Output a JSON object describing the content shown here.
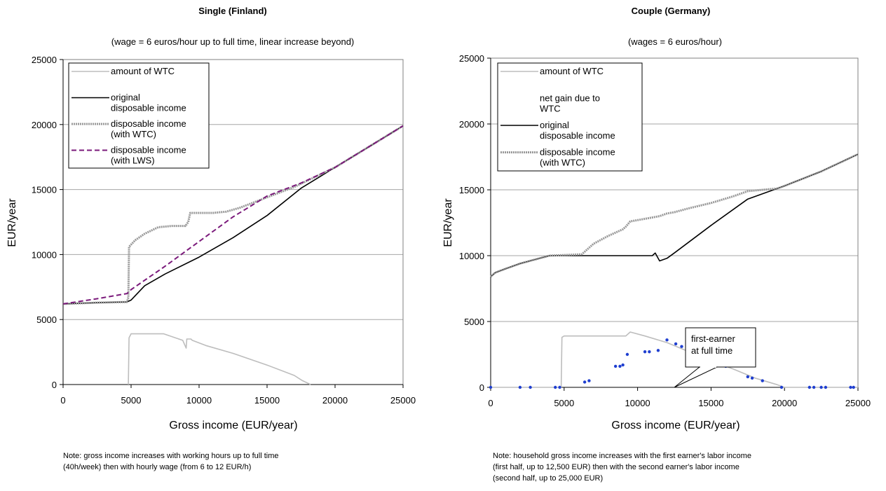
{
  "chart_data": [
    {
      "type": "line",
      "title": "Single (Finland)",
      "subtitle": "(wage = 6 euros/hour up to full time, linear increase beyond)",
      "xlabel": "Gross income (EUR/year)",
      "ylabel": "EUR/year",
      "xlim": [
        0,
        25000
      ],
      "ylim": [
        0,
        25000
      ],
      "xticks": [
        0,
        5000,
        10000,
        15000,
        20000,
        25000
      ],
      "yticks": [
        0,
        5000,
        10000,
        15000,
        20000,
        25000
      ],
      "grid": true,
      "legend_position": "top-left",
      "note": [
        "Note: gross income increases with working hours up to full time",
        "(40h/week) then with hourly wage (from 6 to 12 EUR/h)"
      ],
      "series": [
        {
          "name": "amount of WTC",
          "color": "#bdbdbd",
          "style": "solid",
          "x": [
            4800,
            4850,
            5000,
            7400,
            8800,
            9050,
            9100,
            9400,
            9500,
            10500,
            12500,
            15000,
            17000,
            17600,
            18200
          ],
          "y": [
            0,
            3600,
            3900,
            3900,
            3400,
            2800,
            3500,
            3500,
            3400,
            3000,
            2400,
            1500,
            700,
            300,
            0
          ]
        },
        {
          "name": "original disposable income",
          "color": "#000000",
          "style": "solid",
          "x": [
            0,
            2500,
            4700,
            5000,
            6000,
            7500,
            10000,
            12500,
            15000,
            17500,
            20000,
            22500,
            25000
          ],
          "y": [
            6200,
            6300,
            6350,
            6500,
            7600,
            8500,
            9800,
            11300,
            13000,
            15100,
            16700,
            18300,
            19900
          ]
        },
        {
          "name": "disposable income (with WTC)",
          "color": "#999999",
          "style": "dotted",
          "x": [
            0,
            2500,
            4700,
            4800,
            4850,
            5300,
            6000,
            7000,
            8000,
            9000,
            9200,
            9350,
            10000,
            11000,
            12000,
            13000,
            14000,
            15000,
            16000,
            17000,
            18000,
            20000,
            22500,
            25000
          ],
          "y": [
            6200,
            6300,
            6350,
            6700,
            10600,
            11100,
            11600,
            12100,
            12200,
            12200,
            12500,
            13200,
            13200,
            13200,
            13300,
            13600,
            14000,
            14400,
            14800,
            15200,
            15700,
            16700,
            18300,
            19900
          ]
        },
        {
          "name": "disposable income (with LWS)",
          "color": "#7b1a7b",
          "style": "dashed",
          "x": [
            0,
            2500,
            4700,
            5000,
            7500,
            10000,
            12500,
            15000,
            17500,
            20000,
            22500,
            25000
          ],
          "y": [
            6200,
            6600,
            7000,
            7300,
            9100,
            11000,
            12900,
            14500,
            15500,
            16700,
            18300,
            19900
          ]
        }
      ]
    },
    {
      "type": "line",
      "title": "Couple (Germany)",
      "subtitle": "(wages = 6 euros/hour)",
      "xlabel": "Gross income (EUR/year)",
      "ylabel": "EUR/year",
      "xlim": [
        0,
        25000
      ],
      "ylim": [
        0,
        25000
      ],
      "xticks": [
        0,
        5000,
        10000,
        15000,
        20000,
        25000
      ],
      "yticks": [
        0,
        5000,
        10000,
        15000,
        20000,
        25000
      ],
      "grid": true,
      "legend_position": "top-left",
      "annotation": {
        "text": [
          "first-earner",
          "at full time"
        ],
        "x": 12500,
        "y": 0
      },
      "note": [
        "Note: household gross income increases with the first earner's labor income",
        "(first half, up to 12,500 EUR) then with the second earner's labor income",
        "(second half, up to 25,000 EUR)"
      ],
      "series": [
        {
          "name": "amount of WTC",
          "color": "#bdbdbd",
          "style": "solid",
          "x": [
            0,
            4800,
            4850,
            5000,
            9200,
            9500,
            10500,
            12000,
            13500,
            15000,
            16500,
            18000,
            19500,
            20000,
            25000
          ],
          "y": [
            0,
            0,
            3800,
            3900,
            3900,
            4200,
            3900,
            3400,
            2700,
            2000,
            1400,
            700,
            200,
            0,
            0
          ]
        },
        {
          "name": "net gain due to WTC",
          "color": "#1f3fd0",
          "style": "markers",
          "x": [
            0,
            2000,
            2700,
            4400,
            4700,
            6400,
            6700,
            8500,
            8800,
            9000,
            9300,
            10500,
            10800,
            11400,
            12000,
            12600,
            13000,
            14000,
            15000,
            16000,
            17500,
            17800,
            18500,
            19800,
            21700,
            22000,
            22500,
            22800,
            24500,
            24700
          ],
          "y": [
            0,
            0,
            0,
            0,
            0,
            400,
            500,
            1600,
            1600,
            1700,
            2500,
            2700,
            2700,
            2800,
            3600,
            3300,
            3100,
            2700,
            1800,
            1600,
            800,
            700,
            500,
            0,
            0,
            0,
            0,
            0,
            0,
            0
          ]
        },
        {
          "name": "original disposable income",
          "color": "#000000",
          "style": "solid",
          "x": [
            0,
            300,
            1000,
            2000,
            3000,
            4000,
            6000,
            8000,
            10000,
            11000,
            11200,
            11500,
            12000,
            12500,
            15000,
            17500,
            20000,
            22500,
            25000
          ],
          "y": [
            8400,
            8700,
            9000,
            9400,
            9700,
            10000,
            10000,
            10000,
            10000,
            10000,
            10200,
            9600,
            9800,
            10200,
            12300,
            14300,
            15300,
            16400,
            17700
          ]
        },
        {
          "name": "disposable income (with WTC)",
          "color": "#999999",
          "style": "dotted",
          "x": [
            0,
            300,
            1000,
            2000,
            3000,
            4000,
            6200,
            7000,
            8000,
            9000,
            9200,
            9500,
            10500,
            11500,
            12000,
            12500,
            13500,
            15000,
            16500,
            17500,
            18500,
            19500,
            20000,
            22500,
            25000
          ],
          "y": [
            8400,
            8700,
            9000,
            9400,
            9700,
            10000,
            10100,
            10900,
            11500,
            12000,
            12200,
            12600,
            12800,
            13000,
            13200,
            13300,
            13600,
            14000,
            14500,
            14900,
            15000,
            15100,
            15300,
            16400,
            17700
          ]
        }
      ]
    }
  ]
}
